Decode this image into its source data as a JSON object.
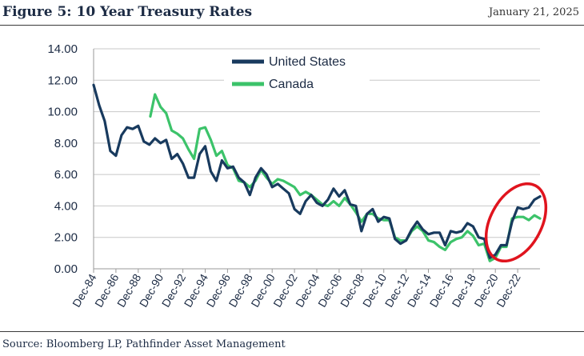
{
  "header": {
    "title": "Figure 5: 10 Year Treasury Rates",
    "date": "January 21, 2025"
  },
  "footer": {
    "source": "Source: Bloomberg LP, Pathfinder Asset Management"
  },
  "colors": {
    "us": "#183a5e",
    "canada": "#3cc36a",
    "grid": "#c8c8c8",
    "highlight": "#e0141e"
  },
  "chart_data": {
    "type": "line",
    "title": "",
    "xlabel": "",
    "ylabel": "",
    "ylim": [
      0,
      14
    ],
    "y_ticks": [
      "0.00",
      "2.00",
      "4.00",
      "6.00",
      "8.00",
      "10.00",
      "12.00",
      "14.00"
    ],
    "x_ticks": [
      "Dec-84",
      "Dec-86",
      "Dec-88",
      "Dec-90",
      "Dec-92",
      "Dec-94",
      "Dec-96",
      "Dec-98",
      "Dec-00",
      "Dec-02",
      "Dec-04",
      "Dec-06",
      "Dec-08",
      "Dec-10",
      "Dec-12",
      "Dec-14",
      "Dec-16",
      "Dec-18",
      "Dec-20",
      "Dec-22"
    ],
    "xlim": [
      "1984-12",
      "2024-12"
    ],
    "grid": true,
    "legend": "top-center",
    "annotations": [
      "red ellipse highlighting 2020–2024 rate rise"
    ],
    "series": [
      {
        "name": "United States",
        "x": [
          "1984-12",
          "1985-06",
          "1985-12",
          "1986-06",
          "1986-12",
          "1987-06",
          "1987-12",
          "1988-06",
          "1988-12",
          "1989-06",
          "1989-12",
          "1990-06",
          "1990-12",
          "1991-06",
          "1991-12",
          "1992-06",
          "1992-12",
          "1993-06",
          "1993-12",
          "1994-06",
          "1994-12",
          "1995-06",
          "1995-12",
          "1996-06",
          "1996-12",
          "1997-06",
          "1997-12",
          "1998-06",
          "1998-12",
          "1999-06",
          "1999-12",
          "2000-06",
          "2000-12",
          "2001-06",
          "2001-12",
          "2002-06",
          "2002-12",
          "2003-06",
          "2003-12",
          "2004-06",
          "2004-12",
          "2005-06",
          "2005-12",
          "2006-06",
          "2006-12",
          "2007-06",
          "2007-12",
          "2008-06",
          "2008-12",
          "2009-06",
          "2009-12",
          "2010-06",
          "2010-12",
          "2011-06",
          "2011-12",
          "2012-06",
          "2012-12",
          "2013-06",
          "2013-12",
          "2014-06",
          "2014-12",
          "2015-06",
          "2015-12",
          "2016-06",
          "2016-12",
          "2017-06",
          "2017-12",
          "2018-06",
          "2018-12",
          "2019-06",
          "2019-12",
          "2020-06",
          "2020-12",
          "2021-06",
          "2021-12",
          "2022-06",
          "2022-12",
          "2023-06",
          "2023-12",
          "2024-06",
          "2024-12"
        ],
        "values": [
          11.7,
          10.4,
          9.4,
          7.5,
          7.2,
          8.5,
          9.0,
          8.9,
          9.1,
          8.1,
          7.9,
          8.3,
          8.0,
          8.2,
          7.0,
          7.3,
          6.7,
          5.8,
          5.8,
          7.3,
          7.8,
          6.2,
          5.6,
          6.9,
          6.4,
          6.5,
          5.8,
          5.5,
          4.7,
          5.8,
          6.4,
          6.0,
          5.2,
          5.4,
          5.1,
          4.8,
          3.8,
          3.5,
          4.3,
          4.7,
          4.2,
          4.0,
          4.4,
          5.1,
          4.6,
          5.0,
          4.1,
          4.0,
          2.4,
          3.5,
          3.8,
          3.0,
          3.3,
          3.2,
          1.9,
          1.6,
          1.8,
          2.5,
          3.0,
          2.5,
          2.2,
          2.3,
          2.3,
          1.5,
          2.4,
          2.3,
          2.4,
          2.9,
          2.7,
          2.0,
          1.9,
          0.7,
          0.9,
          1.5,
          1.5,
          3.0,
          3.9,
          3.8,
          3.9,
          4.4,
          4.6
        ]
      },
      {
        "name": "Canada",
        "x": [
          "1990-01",
          "1990-06",
          "1990-12",
          "1991-06",
          "1991-12",
          "1992-06",
          "1992-12",
          "1993-06",
          "1993-12",
          "1994-06",
          "1994-12",
          "1995-06",
          "1995-12",
          "1996-06",
          "1996-12",
          "1997-06",
          "1997-12",
          "1998-06",
          "1998-12",
          "1999-06",
          "1999-12",
          "2000-06",
          "2000-12",
          "2001-06",
          "2001-12",
          "2002-06",
          "2002-12",
          "2003-06",
          "2003-12",
          "2004-06",
          "2004-12",
          "2005-06",
          "2005-12",
          "2006-06",
          "2006-12",
          "2007-06",
          "2007-12",
          "2008-06",
          "2008-12",
          "2009-06",
          "2009-12",
          "2010-06",
          "2010-12",
          "2011-06",
          "2011-12",
          "2012-06",
          "2012-12",
          "2013-06",
          "2013-12",
          "2014-06",
          "2014-12",
          "2015-06",
          "2015-12",
          "2016-06",
          "2016-12",
          "2017-06",
          "2017-12",
          "2018-06",
          "2018-12",
          "2019-06",
          "2019-12",
          "2020-06",
          "2020-12",
          "2021-06",
          "2021-12",
          "2022-06",
          "2022-12",
          "2023-06",
          "2023-12",
          "2024-06",
          "2024-12"
        ],
        "values": [
          9.7,
          11.1,
          10.3,
          9.9,
          8.8,
          8.6,
          8.3,
          7.6,
          7.0,
          8.9,
          9.0,
          8.2,
          7.2,
          7.5,
          6.6,
          6.4,
          5.6,
          5.5,
          5.2,
          5.6,
          6.3,
          5.8,
          5.4,
          5.7,
          5.6,
          5.4,
          5.2,
          4.7,
          4.9,
          4.7,
          4.4,
          4.1,
          4.0,
          4.3,
          4.0,
          4.5,
          4.1,
          3.6,
          3.0,
          3.5,
          3.5,
          3.2,
          3.1,
          3.1,
          2.0,
          1.8,
          1.8,
          2.4,
          2.7,
          2.4,
          1.8,
          1.7,
          1.4,
          1.2,
          1.7,
          1.9,
          2.0,
          2.4,
          2.1,
          1.5,
          1.6,
          0.5,
          0.7,
          1.4,
          1.4,
          3.2,
          3.3,
          3.3,
          3.1,
          3.4,
          3.2
        ]
      }
    ]
  }
}
